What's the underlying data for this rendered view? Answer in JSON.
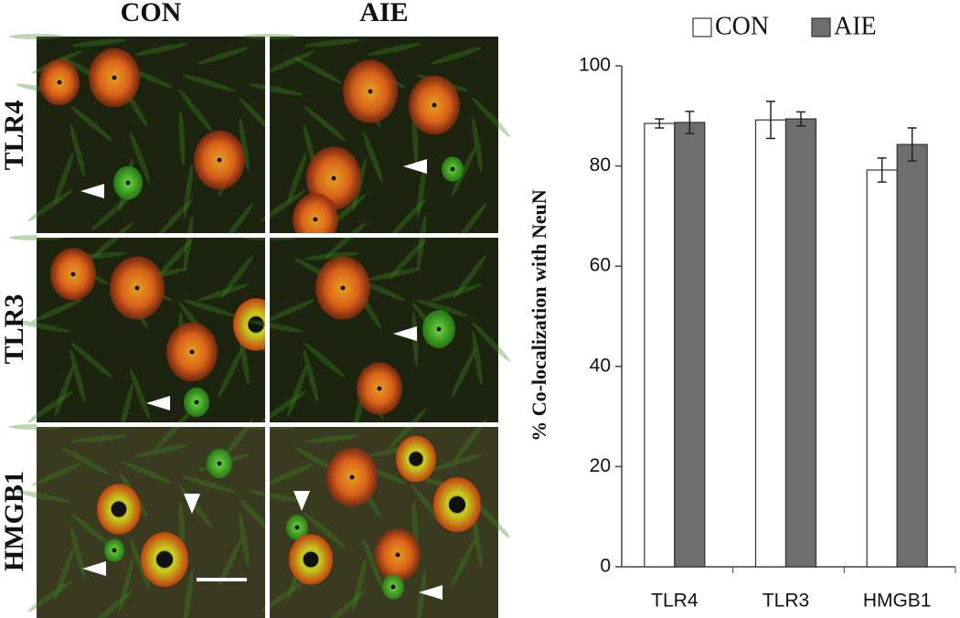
{
  "figure_panels": {
    "columns": [
      "CON",
      "AIE"
    ],
    "rows": [
      "TLR4",
      "TLR3",
      "HMGB1"
    ]
  },
  "chart_data": {
    "type": "bar",
    "ylabel": "% Co-localization with NeuN",
    "categories": [
      "TLR4",
      "TLR3",
      "HMGB1"
    ],
    "series": [
      {
        "name": "CON",
        "color": "#ffffff",
        "values": [
          88.5,
          89.2,
          79.2
        ],
        "errors": [
          0.9,
          3.7,
          2.4
        ]
      },
      {
        "name": "AIE",
        "color": "#6e6e6e",
        "values": [
          88.7,
          89.4,
          84.3
        ],
        "errors": [
          2.2,
          1.4,
          3.3
        ]
      }
    ],
    "ylim": [
      0,
      100
    ],
    "yticks": [
      0,
      20,
      40,
      60,
      80,
      100
    ],
    "legend": "top"
  }
}
